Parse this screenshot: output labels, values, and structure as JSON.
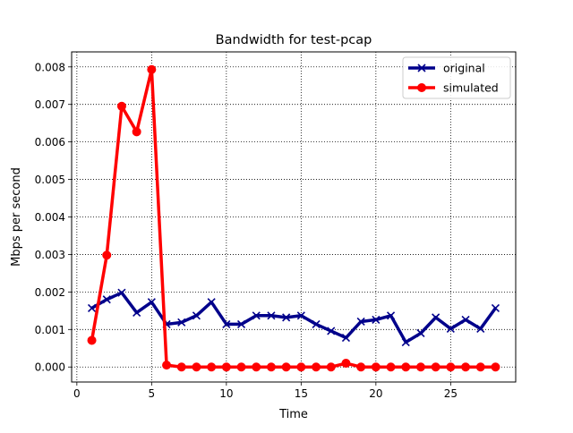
{
  "chart_data": {
    "type": "line",
    "title": "Bandwidth for test-pcap",
    "xlabel": "Time",
    "ylabel": "Mbps per second",
    "xlim": [
      -0.35,
      29.35
    ],
    "ylim": [
      -0.0004,
      0.0084
    ],
    "x_ticks": [
      0,
      5,
      10,
      15,
      20,
      25
    ],
    "y_ticks": [
      0.0,
      0.001,
      0.002,
      0.003,
      0.004,
      0.005,
      0.006,
      0.007,
      0.008
    ],
    "y_tick_labels": [
      "0.000",
      "0.001",
      "0.002",
      "0.003",
      "0.004",
      "0.005",
      "0.006",
      "0.007",
      "0.008"
    ],
    "x_tick_labels": [
      "0",
      "5",
      "10",
      "15",
      "20",
      "25"
    ],
    "grid": true,
    "grid_style": "dotted",
    "legend_position": "top-right",
    "x": [
      1,
      2,
      3,
      4,
      5,
      6,
      7,
      8,
      9,
      10,
      11,
      12,
      13,
      14,
      15,
      16,
      17,
      18,
      19,
      20,
      21,
      22,
      23,
      24,
      25,
      26,
      27,
      28
    ],
    "series": [
      {
        "name": "original",
        "color": "#00008b",
        "marker": "x",
        "values": [
          0.00157,
          0.0018,
          0.00198,
          0.00145,
          0.00173,
          0.00114,
          0.00119,
          0.00137,
          0.00173,
          0.00114,
          0.00114,
          0.00137,
          0.00137,
          0.00132,
          0.00137,
          0.00114,
          0.00096,
          0.00078,
          0.00121,
          0.00126,
          0.00137,
          0.00066,
          0.0009,
          0.00132,
          0.00102,
          0.00126,
          0.00102,
          0.00157
        ]
      },
      {
        "name": "simulated",
        "color": "#ff0000",
        "marker": "o",
        "values": [
          0.00071,
          0.00298,
          0.00695,
          0.00627,
          0.00793,
          5e-05,
          0.0,
          0.0,
          0.0,
          0.0,
          0.0,
          0.0,
          0.0,
          0.0,
          0.0,
          0.0,
          0.0,
          0.0001,
          0.0,
          0.0,
          0.0,
          0.0,
          0.0,
          0.0,
          0.0,
          0.0,
          0.0,
          0.0
        ]
      }
    ]
  }
}
